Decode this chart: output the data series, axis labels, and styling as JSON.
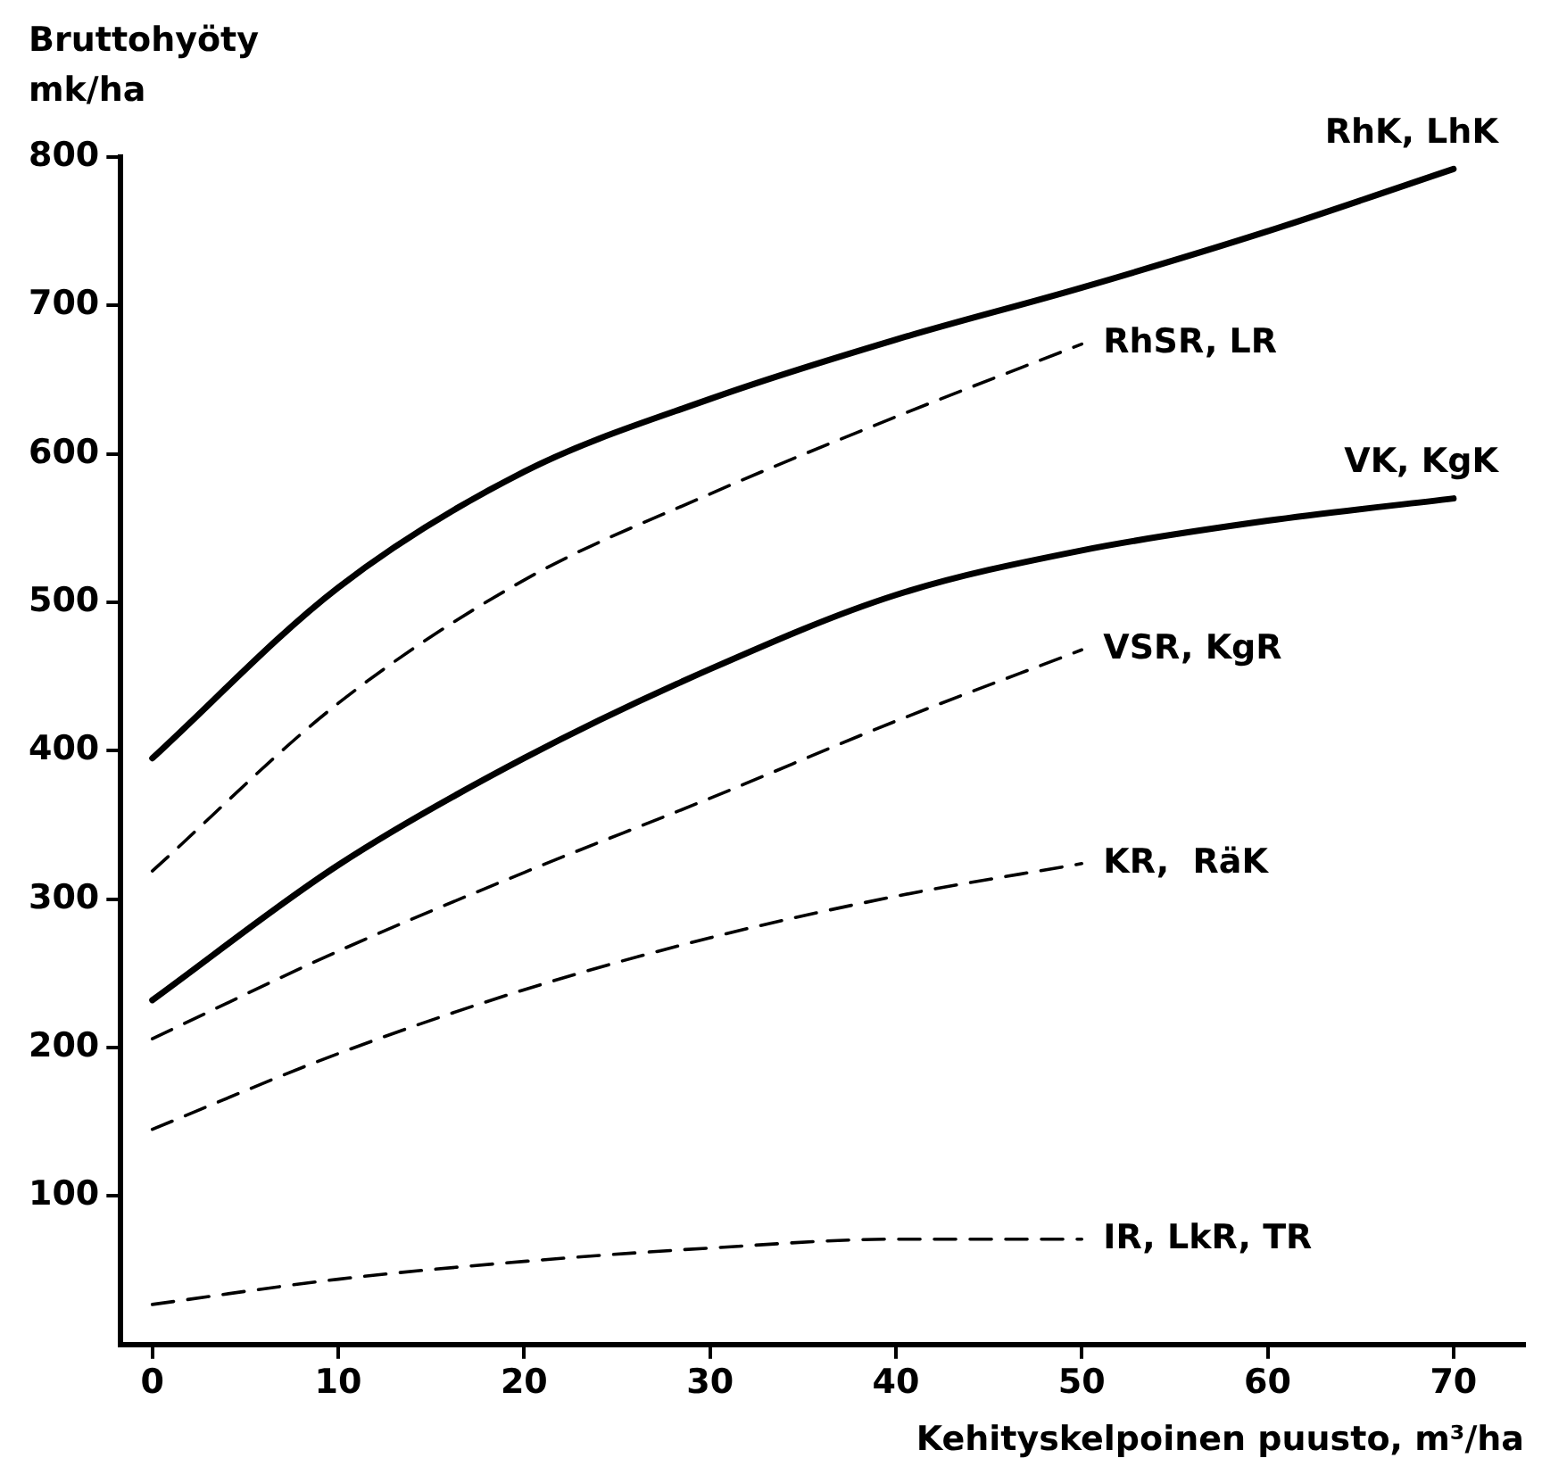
{
  "chart_data": {
    "type": "line",
    "xlabel": "Kehityskelpoinen puusto, m³/ha",
    "ylabel": "Bruttohyöty\nmk/ha",
    "xlim": [
      -1.7,
      73.8
    ],
    "ylim": [
      0,
      800
    ],
    "xticks": [
      0,
      10,
      20,
      30,
      40,
      50,
      60,
      70
    ],
    "yticks": [
      100,
      200,
      300,
      400,
      500,
      600,
      700,
      800
    ],
    "grid": false,
    "legend": false,
    "marker": "none",
    "series": [
      {
        "name": "RhK, LhK",
        "color": "#000000",
        "line_style": "solid",
        "x": [
          0,
          10,
          20,
          30,
          40,
          50,
          60,
          70
        ],
        "values": [
          395,
          510,
          588,
          637,
          677,
          712,
          750,
          792
        ]
      },
      {
        "name": "RhSR, LR",
        "color": "#000000",
        "line_style": "dashed",
        "x": [
          0,
          10,
          20,
          30,
          40,
          50
        ],
        "values": [
          319,
          432,
          515,
          573,
          625,
          674
        ]
      },
      {
        "name": "VK, KgK",
        "color": "#000000",
        "line_style": "solid",
        "x": [
          0,
          10,
          20,
          30,
          40,
          50,
          60,
          70
        ],
        "values": [
          232,
          323,
          395,
          455,
          505,
          535,
          555,
          570
        ]
      },
      {
        "name": "VSR, KgR",
        "color": "#000000",
        "line_style": "dashed",
        "x": [
          0,
          10,
          20,
          30,
          40,
          50
        ],
        "values": [
          206,
          265,
          318,
          368,
          420,
          468
        ]
      },
      {
        "name": "KR,  RäK",
        "color": "#000000",
        "line_style": "dashed",
        "x": [
          0,
          10,
          20,
          30,
          40,
          50
        ],
        "values": [
          145,
          196,
          239,
          274,
          302,
          324
        ]
      },
      {
        "name": "IR, LkR, TR",
        "color": "#000000",
        "line_style": "dashed",
        "x": [
          0,
          10,
          20,
          30,
          40,
          50
        ],
        "values": [
          27,
          44,
          56,
          65,
          71,
          71
        ]
      }
    ]
  }
}
